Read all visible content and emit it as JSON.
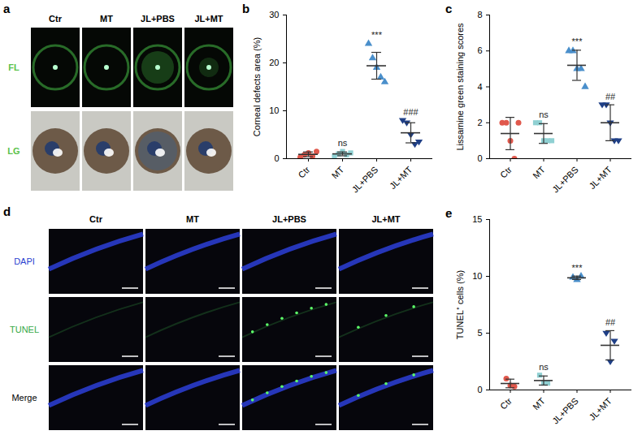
{
  "panels": {
    "a": {
      "panel": "a",
      "columns": [
        "Ctr",
        "MT",
        "JL+PBS",
        "JL+MT"
      ],
      "rows": [
        {
          "text": "FL",
          "color": "#5cc24a"
        },
        {
          "text": "LG",
          "color": "#5cc24a"
        }
      ]
    },
    "d": {
      "panel": "d",
      "columns": [
        "Ctr",
        "MT",
        "JL+PBS",
        "JL+MT"
      ],
      "rows": [
        {
          "text": "DAPI",
          "color": "#2b3fd0"
        },
        {
          "text": "TUNEL",
          "color": "#35a845"
        },
        {
          "text": "Merge",
          "color": "#000000"
        }
      ]
    }
  },
  "chart_data": [
    {
      "panel": "b",
      "type": "scatter",
      "y_label": "Corneal defects area (%)",
      "ylim": [
        0,
        30
      ],
      "yticks": [
        0,
        10,
        20,
        30
      ],
      "grid": false,
      "series": [
        {
          "name": "Ctr",
          "color": "#e0584c",
          "marker": "circle",
          "values": [
            0.3,
            0.8,
            1.2,
            0.5,
            1.5
          ],
          "mean": 0.9,
          "sd": 0.5,
          "annotation": null
        },
        {
          "name": "MT",
          "color": "#8fd0d2",
          "marker": "square",
          "values": [
            0.5,
            1.0,
            1.5,
            0.8,
            1.2
          ],
          "mean": 1.0,
          "sd": 0.4,
          "annotation": "ns"
        },
        {
          "name": "JL+PBS",
          "color": "#4a8fcb",
          "marker": "triangle-up",
          "values": [
            24,
            21,
            19,
            17,
            16
          ],
          "mean": 19.4,
          "sd": 2.8,
          "annotation": "***"
        },
        {
          "name": "JL+MT",
          "color": "#1f3f86",
          "marker": "triangle-down",
          "values": [
            8,
            7.5,
            5,
            3,
            3.5
          ],
          "mean": 5.4,
          "sd": 2.1,
          "annotation": "###"
        }
      ]
    },
    {
      "panel": "c",
      "type": "scatter",
      "y_label": "Lissamine green staining scores",
      "ylim": [
        0,
        8
      ],
      "yticks": [
        0,
        2,
        4,
        6,
        8
      ],
      "grid": false,
      "series": [
        {
          "name": "Ctr",
          "color": "#e0584c",
          "marker": "circle",
          "values": [
            2,
            2,
            1,
            0,
            2
          ],
          "mean": 1.4,
          "sd": 0.9,
          "annotation": null
        },
        {
          "name": "MT",
          "color": "#8fd0d2",
          "marker": "square",
          "values": [
            2,
            2,
            1,
            1,
            1
          ],
          "mean": 1.4,
          "sd": 0.55,
          "annotation": "ns"
        },
        {
          "name": "JL+PBS",
          "color": "#4a8fcb",
          "marker": "triangle-up",
          "values": [
            6,
            6,
            5,
            5,
            4
          ],
          "mean": 5.2,
          "sd": 0.84,
          "annotation": "***"
        },
        {
          "name": "JL+MT",
          "color": "#1f3f86",
          "marker": "triangle-down",
          "values": [
            3,
            3,
            2,
            1,
            1
          ],
          "mean": 2.0,
          "sd": 1.0,
          "annotation": "##"
        }
      ]
    },
    {
      "panel": "e",
      "type": "scatter",
      "y_label": "TUNEL⁺ cells (%)",
      "ylim": [
        0,
        15
      ],
      "yticks": [
        0,
        5,
        10,
        15
      ],
      "grid": false,
      "series": [
        {
          "name": "Ctr",
          "color": "#e0584c",
          "marker": "circle",
          "values": [
            1.0,
            0.4,
            0.3
          ],
          "mean": 0.57,
          "sd": 0.38,
          "annotation": null
        },
        {
          "name": "MT",
          "color": "#8fd0d2",
          "marker": "square",
          "values": [
            1.3,
            0.6,
            0.6
          ],
          "mean": 0.83,
          "sd": 0.4,
          "annotation": "ns"
        },
        {
          "name": "JL+PBS",
          "color": "#4a8fcb",
          "marker": "triangle-up",
          "values": [
            9.9,
            9.7,
            10.0
          ],
          "mean": 9.87,
          "sd": 0.15,
          "annotation": "***"
        },
        {
          "name": "JL+MT",
          "color": "#1f3f86",
          "marker": "triangle-down",
          "values": [
            5.0,
            2.5,
            4.3
          ],
          "mean": 3.93,
          "sd": 1.29,
          "annotation": "##"
        }
      ]
    }
  ]
}
